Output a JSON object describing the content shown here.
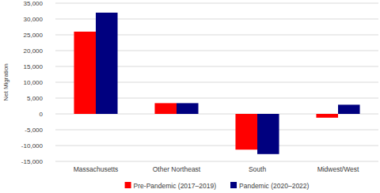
{
  "chart_data": {
    "type": "bar",
    "y_label": "Net Migration",
    "categories": [
      "Massachusetts",
      "Other Northeast",
      "South",
      "Midwest/West"
    ],
    "series": [
      {
        "name": "Pre-Pandemic (2017–2019)",
        "color": "#ff0000",
        "values": [
          26000,
          3400,
          -11300,
          -1200
        ]
      },
      {
        "name": "Pandemic (2020–2022)",
        "color": "#00007f",
        "values": [
          32000,
          3400,
          -12700,
          2900
        ]
      }
    ],
    "ylim": [
      -15000,
      35000
    ],
    "yticks": [
      {
        "value": -15000,
        "label": "-15,000"
      },
      {
        "value": -10000,
        "label": "-10,000"
      },
      {
        "value": -5000,
        "label": "-5,000"
      },
      0,
      {
        "value": 5000,
        "label": "5,000"
      },
      {
        "value": 10000,
        "label": "10,000"
      },
      {
        "value": 15000,
        "label": "15,000"
      },
      {
        "value": 20000,
        "label": "20,000"
      },
      {
        "value": 25000,
        "label": "25,000"
      },
      {
        "value": 30000,
        "label": "30,000"
      },
      {
        "value": 35000,
        "label": "35,000"
      }
    ],
    "grid": true,
    "legend": "bottom"
  }
}
